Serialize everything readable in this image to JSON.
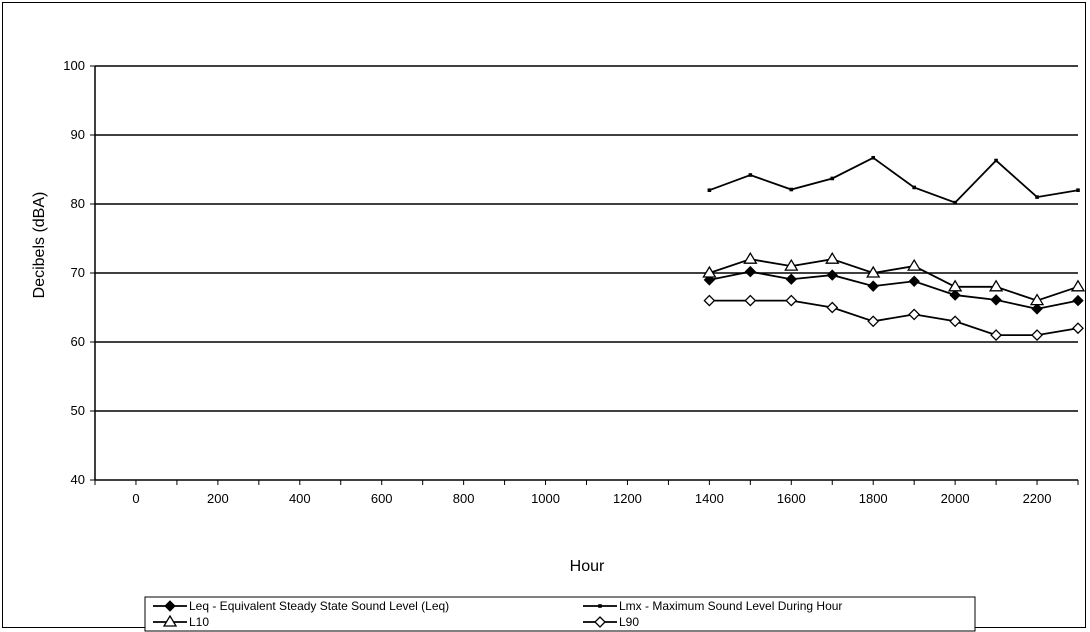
{
  "chart_data": {
    "type": "line",
    "xlabel": "Hour",
    "ylabel": "Decibels (dBA)",
    "xlim": [
      -100,
      2300
    ],
    "ylim": [
      40,
      100
    ],
    "xticks": [
      "0",
      "200",
      "400",
      "600",
      "800",
      "1000",
      "1200",
      "1400",
      "1600",
      "1800",
      "2000",
      "2200"
    ],
    "yticks": [
      "40",
      "50",
      "60",
      "70",
      "80",
      "90",
      "100"
    ],
    "grid": "horizontal",
    "legend_position": "bottom",
    "x_labels": [
      "1400",
      "1500",
      "1600",
      "1700",
      "1800",
      "1900",
      "2000",
      "2100",
      "2200",
      "2300"
    ],
    "series": [
      {
        "name": "Leq - Equivalent Steady State Sound Level (Leq)",
        "marker": "diamond-filled",
        "values": [
          69,
          70.2,
          69.1,
          69.7,
          68.1,
          68.8,
          66.8,
          66.1,
          64.8,
          66
        ]
      },
      {
        "name": "Lmx - Maximum Sound Level During Hour",
        "marker": "dot",
        "values": [
          82,
          84.2,
          82.1,
          83.7,
          86.7,
          82.4,
          80.2,
          86.3,
          81,
          82
        ]
      },
      {
        "name": "L10",
        "marker": "triangle-open",
        "values": [
          70,
          72,
          71,
          72,
          70,
          71,
          68,
          68,
          66,
          68
        ]
      },
      {
        "name": "L90",
        "marker": "diamond-open",
        "values": [
          66,
          66,
          66,
          65,
          63,
          64,
          63,
          61,
          61,
          62
        ]
      }
    ]
  }
}
